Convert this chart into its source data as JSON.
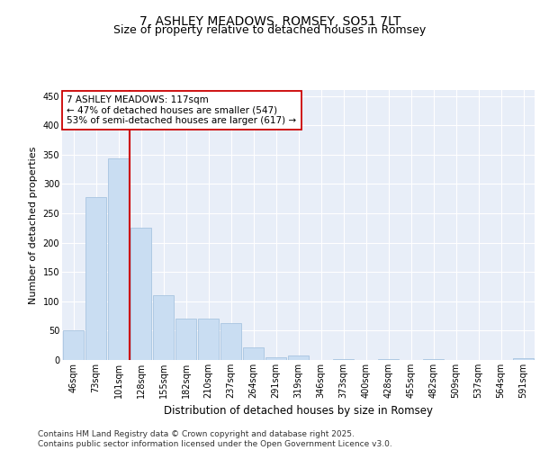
{
  "title": "7, ASHLEY MEADOWS, ROMSEY, SO51 7LT",
  "subtitle": "Size of property relative to detached houses in Romsey",
  "xlabel": "Distribution of detached houses by size in Romsey",
  "ylabel": "Number of detached properties",
  "categories": [
    "46sqm",
    "73sqm",
    "101sqm",
    "128sqm",
    "155sqm",
    "182sqm",
    "210sqm",
    "237sqm",
    "264sqm",
    "291sqm",
    "319sqm",
    "346sqm",
    "373sqm",
    "400sqm",
    "428sqm",
    "455sqm",
    "482sqm",
    "509sqm",
    "537sqm",
    "564sqm",
    "591sqm"
  ],
  "values": [
    50,
    277,
    344,
    226,
    110,
    71,
    71,
    63,
    21,
    5,
    7,
    0,
    1,
    0,
    2,
    0,
    1,
    0,
    0,
    0,
    3
  ],
  "bar_color": "#c9ddf2",
  "bar_edge_color": "#a8c4e0",
  "vline_color": "#cc0000",
  "annotation_text": "7 ASHLEY MEADOWS: 117sqm\n← 47% of detached houses are smaller (547)\n53% of semi-detached houses are larger (617) →",
  "annotation_box_color": "#ffffff",
  "annotation_box_edge": "#cc0000",
  "ylim": [
    0,
    460
  ],
  "yticks": [
    0,
    50,
    100,
    150,
    200,
    250,
    300,
    350,
    400,
    450
  ],
  "background_color": "#e8eef8",
  "grid_color": "#ffffff",
  "footer": "Contains HM Land Registry data © Crown copyright and database right 2025.\nContains public sector information licensed under the Open Government Licence v3.0.",
  "title_fontsize": 10,
  "subtitle_fontsize": 9,
  "ylabel_fontsize": 8,
  "xlabel_fontsize": 8.5,
  "tick_fontsize": 7,
  "footer_fontsize": 6.5
}
